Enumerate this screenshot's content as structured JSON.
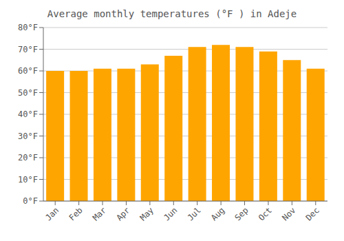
{
  "chart_data": {
    "type": "bar",
    "title": "Average monthly temperatures (°F ) in Adeje",
    "categories": [
      "Jan",
      "Feb",
      "Mar",
      "Apr",
      "May",
      "Jun",
      "Jul",
      "Aug",
      "Sep",
      "Oct",
      "Nov",
      "Dec"
    ],
    "values": [
      60,
      60,
      61,
      61,
      63,
      67,
      71,
      72,
      71,
      69,
      65,
      61
    ],
    "color": "#FFA500",
    "ylim": [
      0,
      80
    ],
    "yticks": [
      {
        "value": 0,
        "label": "0°F"
      },
      {
        "value": 10,
        "label": "10°F"
      },
      {
        "value": 20,
        "label": "20°F"
      },
      {
        "value": 30,
        "label": "30°F"
      },
      {
        "value": 40,
        "label": "40°F"
      },
      {
        "value": 50,
        "label": "50°F"
      },
      {
        "value": 60,
        "label": "60°F"
      },
      {
        "value": 70,
        "label": "70°F"
      },
      {
        "value": 80,
        "label": "80°F"
      }
    ],
    "grid": true
  }
}
